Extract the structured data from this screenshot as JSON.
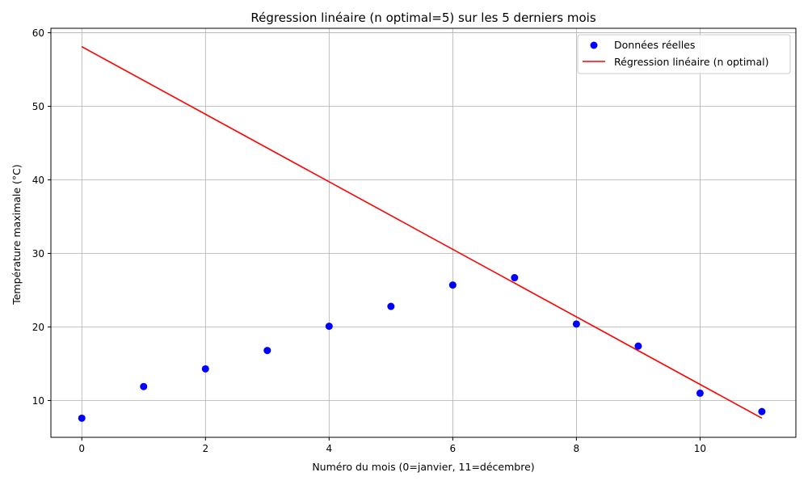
{
  "chart_data": {
    "type": "scatter",
    "title": "Régression linéaire (n optimal=5) sur les 5 derniers mois",
    "xlabel": "Numéro du mois (0=janvier, 11=décembre)",
    "ylabel": "Température maximale (°C)",
    "xlim": [
      -0.5,
      11.55
    ],
    "ylim": [
      5.0,
      60.6
    ],
    "xticks": [
      0,
      2,
      4,
      6,
      8,
      10
    ],
    "yticks": [
      10,
      20,
      30,
      40,
      50,
      60
    ],
    "grid": true,
    "legend_position": "top-right",
    "series": [
      {
        "name": "Données réelles",
        "kind": "scatter",
        "color": "#0000ff",
        "x": [
          0,
          1,
          2,
          3,
          4,
          5,
          6,
          7,
          8,
          9,
          10,
          11
        ],
        "y": [
          7.6,
          11.9,
          14.3,
          16.8,
          20.1,
          22.8,
          25.7,
          26.7,
          20.4,
          17.4,
          11.0,
          8.5
        ]
      },
      {
        "name": "Régression linéaire (n optimal)",
        "kind": "line",
        "color": "#ff0000",
        "x": [
          0,
          11
        ],
        "y": [
          58.1,
          7.6
        ]
      }
    ]
  }
}
